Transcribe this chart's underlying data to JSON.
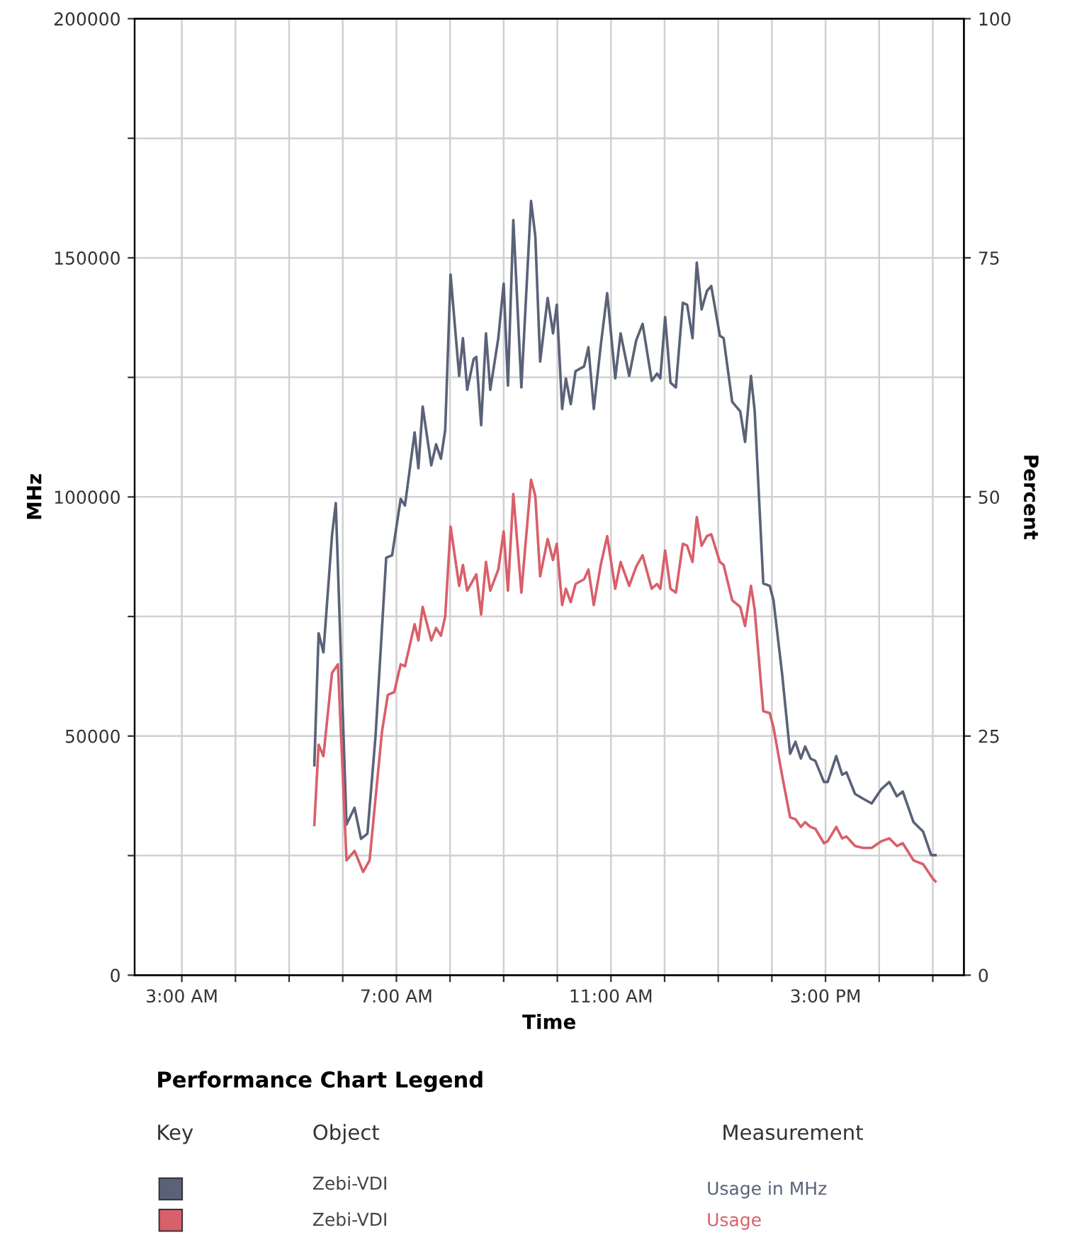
{
  "chart_data": {
    "type": "line",
    "xlabel": "Time",
    "ylabel": "MHz",
    "y2label": "Percent",
    "legend_title": "Performance Chart Legend",
    "annotations": [
      "Key",
      "Object",
      "Measurement",
      "Zebi-VDI",
      "Zebi-VDI"
    ],
    "xlim": [
      2.12,
      17.58
    ],
    "xticks": [
      {
        "value": 3,
        "label": "3:00 AM"
      },
      {
        "value": 4,
        "label": null
      },
      {
        "value": 5,
        "label": null
      },
      {
        "value": 6,
        "label": null
      },
      {
        "value": 7,
        "label": "7:00 AM"
      },
      {
        "value": 8,
        "label": null
      },
      {
        "value": 9,
        "label": null
      },
      {
        "value": 10,
        "label": null
      },
      {
        "value": 11,
        "label": "11:00 AM"
      },
      {
        "value": 12,
        "label": null
      },
      {
        "value": 13,
        "label": null
      },
      {
        "value": 14,
        "label": null
      },
      {
        "value": 15,
        "label": "3:00 PM"
      },
      {
        "value": 16,
        "label": null
      },
      {
        "value": 17,
        "label": null
      }
    ],
    "ylim": [
      0,
      200000
    ],
    "yticks": [
      0,
      {
        "value": 25000,
        "label": null
      },
      50000,
      {
        "value": 75000,
        "label": null
      },
      100000,
      {
        "value": 125000,
        "label": null
      },
      150000,
      {
        "value": 175000,
        "label": null
      },
      200000
    ],
    "y2lim": [
      0,
      100
    ],
    "y2ticks": [
      0,
      25,
      50,
      75,
      100
    ],
    "grid": true,
    "legend": "bottom",
    "marker": "none",
    "line_style": "solid",
    "series": [
      {
        "name": "Usage in MHz",
        "color": "#5a6278",
        "x": [
          5.47,
          5.55,
          5.64,
          5.8,
          5.87,
          6.07,
          6.22,
          6.34,
          6.46,
          6.61,
          6.81,
          6.92,
          7.08,
          7.16,
          7.34,
          7.41,
          7.49,
          7.65,
          7.74,
          7.83,
          7.91,
          8.01,
          8.17,
          8.24,
          8.32,
          8.44,
          8.49,
          8.58,
          8.67,
          8.75,
          8.9,
          9.0,
          9.08,
          9.18,
          9.33,
          9.51,
          9.59,
          9.68,
          9.82,
          9.92,
          9.99,
          10.09,
          10.16,
          10.25,
          10.34,
          10.5,
          10.58,
          10.68,
          10.81,
          10.93,
          11.08,
          11.18,
          11.34,
          11.47,
          11.59,
          11.76,
          11.86,
          11.92,
          12.01,
          12.11,
          12.21,
          12.34,
          12.42,
          12.52,
          12.6,
          12.69,
          12.79,
          12.87,
          13.03,
          13.1,
          13.26,
          13.41,
          13.5,
          13.61,
          13.68,
          13.84,
          13.96,
          14.03,
          14.19,
          14.34,
          14.44,
          14.54,
          14.62,
          14.72,
          14.81,
          14.97,
          15.04,
          15.2,
          15.31,
          15.39,
          15.55,
          15.7,
          15.86,
          16.04,
          16.19,
          16.33,
          16.44,
          16.64,
          16.82,
          16.97,
          17.05
        ],
        "values": [
          43900,
          71500,
          67500,
          92000,
          98700,
          31500,
          35000,
          28500,
          29600,
          49800,
          87300,
          87800,
          99600,
          98200,
          113500,
          106000,
          118900,
          106600,
          111000,
          108000,
          114000,
          146500,
          125300,
          133200,
          122400,
          128800,
          129300,
          115000,
          134200,
          122400,
          133200,
          144600,
          123300,
          157900,
          122900,
          161900,
          154500,
          128300,
          141600,
          134200,
          140200,
          118400,
          124800,
          119400,
          126300,
          127300,
          131300,
          118400,
          131700,
          142600,
          124800,
          134200,
          125300,
          132700,
          136200,
          124300,
          125800,
          124800,
          137600,
          123900,
          122900,
          140600,
          140200,
          133200,
          149000,
          139200,
          143100,
          144100,
          133700,
          133200,
          119900,
          117900,
          111500,
          125300,
          117900,
          81900,
          81400,
          78400,
          63100,
          46300,
          48800,
          45300,
          47800,
          45300,
          44800,
          40400,
          40400,
          45800,
          41900,
          42400,
          37900,
          36900,
          35900,
          38900,
          40400,
          37400,
          38400,
          32000,
          30000,
          25100,
          25100
        ]
      },
      {
        "name": "Usage",
        "color": "#d95f6a",
        "axis": "y2",
        "x": [
          5.47,
          5.55,
          5.64,
          5.8,
          5.91,
          6.07,
          6.22,
          6.38,
          6.5,
          6.73,
          6.84,
          6.96,
          7.08,
          7.16,
          7.34,
          7.41,
          7.49,
          7.65,
          7.74,
          7.83,
          7.91,
          8.01,
          8.17,
          8.24,
          8.32,
          8.49,
          8.58,
          8.67,
          8.75,
          8.9,
          9.0,
          9.08,
          9.18,
          9.33,
          9.51,
          9.59,
          9.68,
          9.82,
          9.92,
          9.99,
          10.09,
          10.16,
          10.25,
          10.34,
          10.5,
          10.58,
          10.68,
          10.81,
          10.93,
          11.08,
          11.18,
          11.34,
          11.47,
          11.59,
          11.76,
          11.86,
          11.92,
          12.01,
          12.11,
          12.21,
          12.34,
          12.42,
          12.52,
          12.6,
          12.69,
          12.79,
          12.87,
          13.03,
          13.1,
          13.26,
          13.41,
          13.5,
          13.61,
          13.68,
          13.84,
          13.96,
          14.03,
          14.19,
          14.34,
          14.44,
          14.54,
          14.62,
          14.72,
          14.81,
          14.97,
          15.04,
          15.2,
          15.31,
          15.39,
          15.55,
          15.7,
          15.86,
          16.04,
          16.19,
          16.33,
          16.44,
          16.64,
          16.82,
          17.0,
          17.05
        ],
        "values": [
          15.7,
          24.1,
          22.9,
          31.6,
          32.5,
          12.0,
          13.0,
          10.8,
          12.0,
          25.4,
          29.3,
          29.6,
          32.5,
          32.3,
          36.7,
          35.0,
          38.5,
          35.0,
          36.3,
          35.5,
          37.5,
          46.9,
          40.7,
          42.9,
          40.2,
          41.9,
          37.7,
          43.2,
          40.2,
          42.4,
          46.4,
          40.2,
          50.3,
          40.0,
          51.8,
          50.1,
          41.7,
          45.6,
          43.4,
          45.1,
          38.7,
          40.4,
          39.0,
          40.9,
          41.4,
          42.4,
          38.7,
          42.9,
          45.9,
          40.4,
          43.2,
          40.7,
          42.7,
          43.9,
          40.4,
          40.9,
          40.4,
          44.4,
          40.4,
          40.0,
          45.1,
          44.9,
          43.2,
          47.9,
          44.9,
          45.9,
          46.1,
          43.2,
          42.9,
          39.2,
          38.5,
          36.5,
          40.7,
          38.2,
          27.6,
          27.4,
          25.9,
          20.9,
          16.5,
          16.3,
          15.5,
          16.0,
          15.5,
          15.3,
          13.8,
          14.0,
          15.5,
          14.3,
          14.5,
          13.5,
          13.3,
          13.3,
          14.0,
          14.3,
          13.5,
          13.8,
          12.0,
          11.6,
          10.1,
          9.8
        ]
      }
    ]
  }
}
